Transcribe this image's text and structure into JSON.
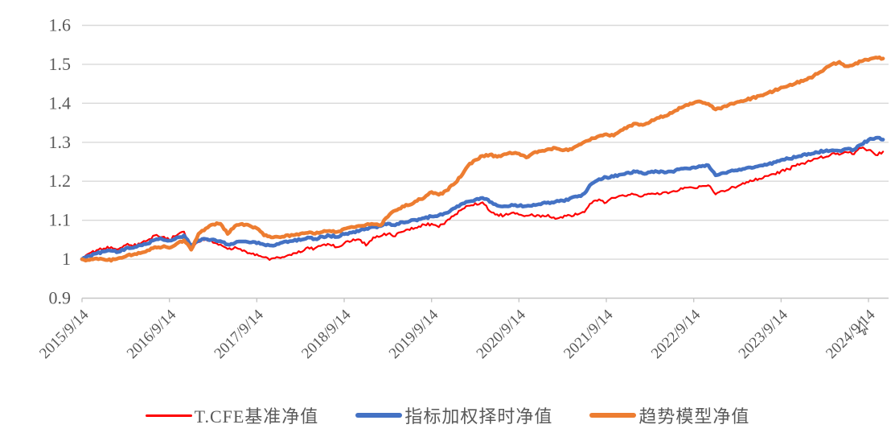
{
  "chart_data": {
    "type": "line",
    "title": "",
    "grid": true,
    "legend_position": "bottom",
    "ylim": [
      0.9,
      1.6
    ],
    "y_tick_labels": [
      "1.6",
      "1.5",
      "1.4",
      "1.3",
      "1.2",
      "1.1",
      "1",
      "0.9"
    ],
    "y_tick_values": [
      1.6,
      1.5,
      1.4,
      1.3,
      1.2,
      1.1,
      1.0,
      0.9
    ],
    "x_tick_labels": [
      "2015/9/14",
      "2016/9/14",
      "2017/9/14",
      "2018/9/14",
      "2019/9/14",
      "2020/9/14",
      "2021/9/14",
      "2022/9/14",
      "2023/9/14",
      "2024/9/14"
    ],
    "months_per_tick": 12,
    "x_total_months": 110,
    "grid_color": "#d9d9d9",
    "axis_color": "#c6c6c6",
    "label_color": "#595959",
    "series": [
      {
        "name": "T.CFE基准净值",
        "color": "#fe0000",
        "width": 2.2,
        "jitter": 0.0035,
        "values": [
          1.0,
          1.014,
          1.022,
          1.028,
          1.03,
          1.026,
          1.038,
          1.034,
          1.04,
          1.048,
          1.06,
          1.056,
          1.05,
          1.062,
          1.07,
          1.026,
          1.045,
          1.052,
          1.044,
          1.038,
          1.026,
          1.03,
          1.022,
          1.016,
          1.012,
          1.006,
          1.0,
          1.003,
          1.008,
          1.016,
          1.018,
          1.03,
          1.027,
          1.035,
          1.038,
          1.032,
          1.04,
          1.048,
          1.052,
          1.036,
          1.056,
          1.06,
          1.066,
          1.06,
          1.07,
          1.076,
          1.082,
          1.088,
          1.09,
          1.084,
          1.096,
          1.112,
          1.126,
          1.136,
          1.142,
          1.145,
          1.124,
          1.114,
          1.112,
          1.118,
          1.115,
          1.11,
          1.113,
          1.108,
          1.113,
          1.105,
          1.108,
          1.112,
          1.115,
          1.12,
          1.145,
          1.152,
          1.145,
          1.158,
          1.162,
          1.165,
          1.165,
          1.162,
          1.166,
          1.169,
          1.171,
          1.173,
          1.178,
          1.183,
          1.182,
          1.186,
          1.19,
          1.168,
          1.175,
          1.182,
          1.188,
          1.195,
          1.201,
          1.208,
          1.213,
          1.218,
          1.225,
          1.231,
          1.24,
          1.246,
          1.251,
          1.258,
          1.263,
          1.271,
          1.268,
          1.276,
          1.27,
          1.286,
          1.28,
          1.268,
          1.276
        ]
      },
      {
        "name": "指标加权择时净值",
        "color": "#4472c4",
        "width": 4.6,
        "jitter": 0.0025,
        "values": [
          1.0,
          1.008,
          1.015,
          1.02,
          1.022,
          1.018,
          1.028,
          1.03,
          1.035,
          1.04,
          1.05,
          1.052,
          1.048,
          1.055,
          1.06,
          1.036,
          1.048,
          1.052,
          1.05,
          1.047,
          1.038,
          1.042,
          1.045,
          1.044,
          1.042,
          1.038,
          1.036,
          1.04,
          1.045,
          1.048,
          1.05,
          1.055,
          1.052,
          1.058,
          1.06,
          1.058,
          1.065,
          1.068,
          1.072,
          1.078,
          1.082,
          1.085,
          1.092,
          1.088,
          1.095,
          1.098,
          1.1,
          1.105,
          1.11,
          1.112,
          1.118,
          1.13,
          1.14,
          1.148,
          1.152,
          1.158,
          1.148,
          1.138,
          1.135,
          1.14,
          1.138,
          1.135,
          1.14,
          1.142,
          1.145,
          1.148,
          1.15,
          1.155,
          1.16,
          1.168,
          1.195,
          1.205,
          1.21,
          1.212,
          1.218,
          1.222,
          1.225,
          1.22,
          1.222,
          1.225,
          1.222,
          1.225,
          1.23,
          1.232,
          1.235,
          1.238,
          1.242,
          1.215,
          1.222,
          1.225,
          1.228,
          1.232,
          1.235,
          1.24,
          1.242,
          1.248,
          1.255,
          1.258,
          1.262,
          1.268,
          1.27,
          1.275,
          1.278,
          1.28,
          1.278,
          1.282,
          1.28,
          1.295,
          1.305,
          1.312,
          1.307
        ]
      },
      {
        "name": "趋势模型净值",
        "color": "#ed7d31",
        "width": 4.6,
        "jitter": 0.0025,
        "values": [
          1.0,
          0.997,
          1.002,
          1.0,
          0.997,
          1.002,
          1.008,
          1.012,
          1.015,
          1.022,
          1.03,
          1.032,
          1.03,
          1.04,
          1.048,
          1.025,
          1.065,
          1.078,
          1.09,
          1.092,
          1.066,
          1.086,
          1.09,
          1.086,
          1.08,
          1.062,
          1.056,
          1.058,
          1.06,
          1.062,
          1.065,
          1.068,
          1.065,
          1.07,
          1.072,
          1.07,
          1.078,
          1.082,
          1.085,
          1.088,
          1.09,
          1.088,
          1.11,
          1.125,
          1.135,
          1.14,
          1.15,
          1.158,
          1.172,
          1.165,
          1.175,
          1.192,
          1.212,
          1.24,
          1.255,
          1.265,
          1.268,
          1.262,
          1.27,
          1.272,
          1.27,
          1.262,
          1.272,
          1.278,
          1.282,
          1.285,
          1.28,
          1.282,
          1.29,
          1.3,
          1.31,
          1.315,
          1.32,
          1.318,
          1.33,
          1.34,
          1.348,
          1.345,
          1.352,
          1.362,
          1.368,
          1.375,
          1.388,
          1.395,
          1.4,
          1.404,
          1.398,
          1.385,
          1.39,
          1.398,
          1.403,
          1.408,
          1.413,
          1.418,
          1.424,
          1.432,
          1.44,
          1.446,
          1.452,
          1.458,
          1.465,
          1.476,
          1.488,
          1.5,
          1.506,
          1.495,
          1.5,
          1.508,
          1.512,
          1.518,
          1.515
        ]
      }
    ]
  }
}
